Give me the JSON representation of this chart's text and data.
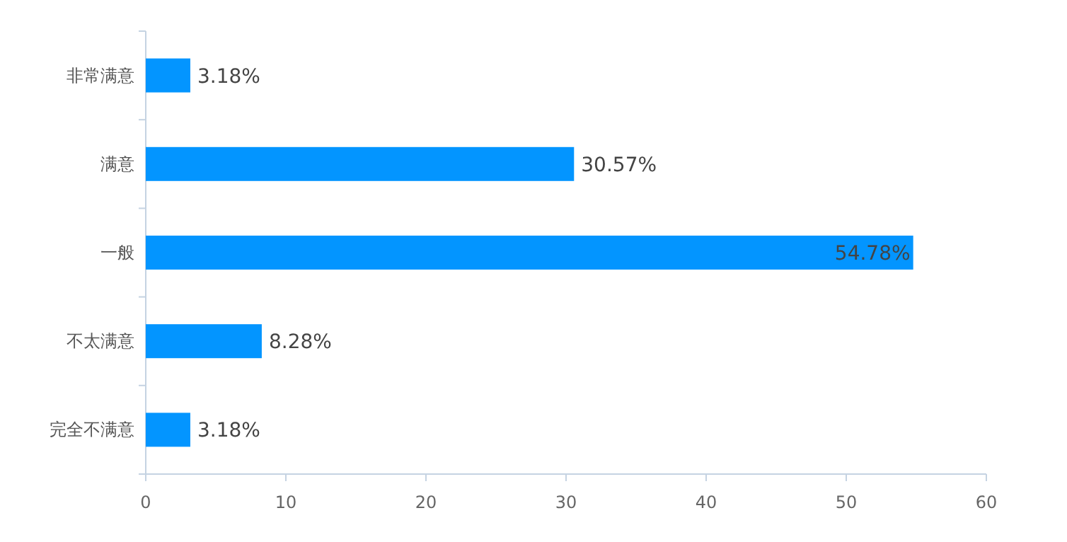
{
  "chart_data": {
    "type": "bar",
    "orientation": "horizontal",
    "categories": [
      "非常满意",
      "满意",
      "一般",
      "不太满意",
      "完全不满意"
    ],
    "values": [
      3.18,
      30.57,
      54.78,
      8.28,
      3.18
    ],
    "value_labels": [
      "3.18%",
      "30.57%",
      "54.78%",
      "8.28%",
      "3.18%"
    ],
    "color": "#0395ff",
    "xlim": [
      0,
      60
    ],
    "xticks": [
      0,
      10,
      20,
      30,
      40,
      50,
      60
    ],
    "grid": false
  }
}
